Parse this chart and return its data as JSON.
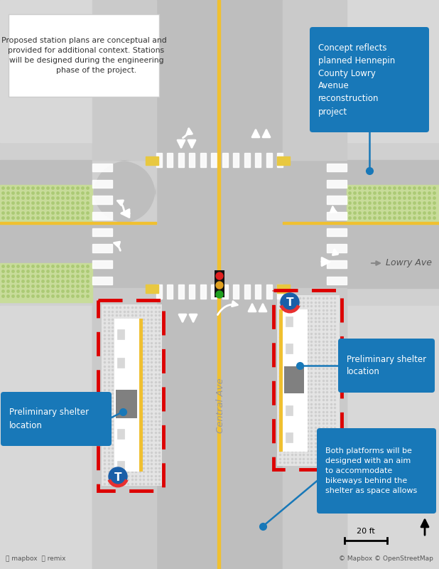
{
  "bg_color": "#d0d0d0",
  "road_color_main": "#bebebe",
  "road_color_side": "#c8c8c8",
  "sidewalk_color": "#e0e0e0",
  "platform_bg": "#e8e8e8",
  "platform_dot": "#c8c8c8",
  "platform_white": "#ffffff",
  "yellow_line": "#f0c030",
  "dashed_red": "#dd0000",
  "blue_box": "#1878b8",
  "grass_color": "#c8dc9a",
  "white": "#ffffff",
  "dark": "#222222",
  "shelter_gray": "#888888",
  "crosswalk_white": "#ffffff",
  "title_text": "Proposed station plans are conceptual and\n  provided for additional context. Stations\n  will be designed during the engineering\n          phase of the project.",
  "ann1_text": "Concept reflects\nplanned Hennepin\nCounty Lowry\nAvenue\nreconstruction\nproject",
  "ann2_text": "Preliminary shelter\nlocation",
  "ann3_text": "Preliminary shelter\nlocation",
  "ann4_text": "Both platforms will be\ndesigned with an aim\nto accommodate\nbikeways behind the\nshelter as space allows",
  "lowry_label": "Lowry Ave",
  "central_label": "Central Ave",
  "scale_text": "20 ft",
  "copyright": "© Mapbox © OpenStreetMap",
  "mapbox_logo": "Ⓜ mapbox  🔄 remix"
}
